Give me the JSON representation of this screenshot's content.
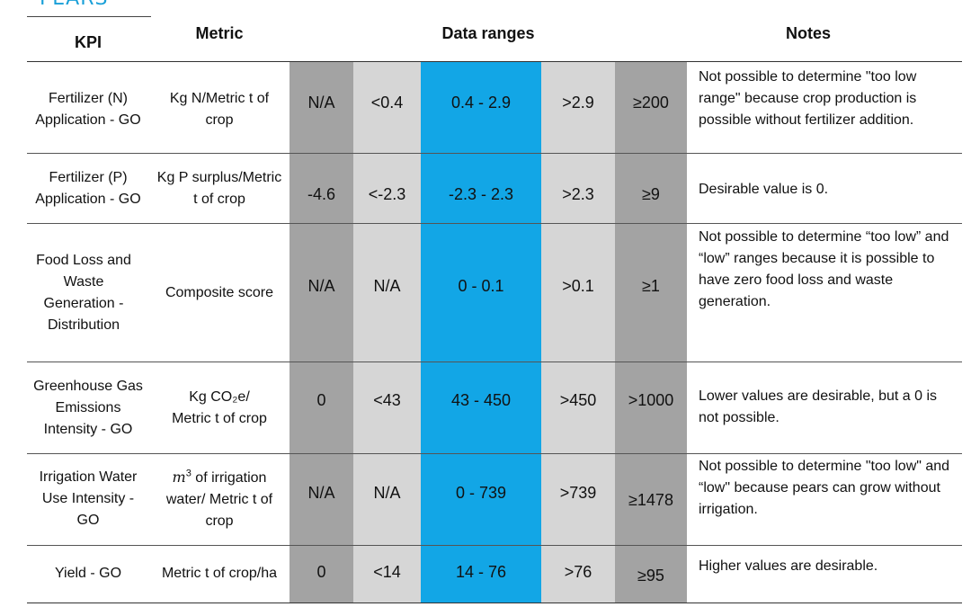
{
  "page_title": "PEARS",
  "headers": {
    "kpi": "KPI",
    "metric": "Metric",
    "ranges": "Data ranges",
    "notes": "Notes"
  },
  "colors": {
    "dark_gray": "#a3a3a3",
    "light_gray": "#d6d6d6",
    "blue": "#12a6e6"
  },
  "rows": [
    {
      "kpi": "Fertilizer (N) Application - GO",
      "metric": "Kg N/Metric t of crop",
      "ranges": [
        "N/A",
        "<0.4",
        "0.4 - 2.9",
        ">2.9",
        "≥200"
      ],
      "note": "Not possible to determine \"too low range\" because crop production is possible without fertilizer addition."
    },
    {
      "kpi": "Fertilizer (P) Application - GO",
      "metric": "Kg P surplus/Metric t of crop",
      "ranges": [
        "-4.6",
        "<-2.3",
        "-2.3 - 2.3",
        ">2.3",
        "≥9"
      ],
      "note": "Desirable value is 0."
    },
    {
      "kpi": "Food Loss and Waste Generation - Distribution",
      "metric": "Composite score",
      "ranges": [
        "N/A",
        "N/A",
        "0 - 0.1",
        ">0.1",
        "≥1"
      ],
      "note": "Not possible to determine “too low” and “low” ranges because it is possible to have zero food loss and waste generation."
    },
    {
      "kpi": "Greenhouse Gas Emissions Intensity - GO",
      "metric_prefix": "Kg CO₂e/",
      "metric_suffix": "Metric t of crop",
      "ranges": [
        "0",
        "<43",
        "43 - 450",
        ">450",
        ">1000"
      ],
      "note": "Lower values are desirable, but a 0 is not possible."
    },
    {
      "kpi": "Irrigation Water Use Intensity - GO",
      "metric_base": "m",
      "metric_sup": "3",
      "metric_rest": " of irrigation water/ Metric t of crop",
      "ranges": [
        "N/A",
        "N/A",
        "0 - 739",
        ">739",
        "≥1478"
      ],
      "note": "Not possible to determine \"too low\" and “low\" because pears can grow without irrigation."
    },
    {
      "kpi": "Yield - GO",
      "metric": "Metric t of crop/ha",
      "ranges": [
        "0",
        "<14",
        "14 - 76",
        ">76",
        "≥95"
      ],
      "note": "Higher values are desirable."
    }
  ]
}
